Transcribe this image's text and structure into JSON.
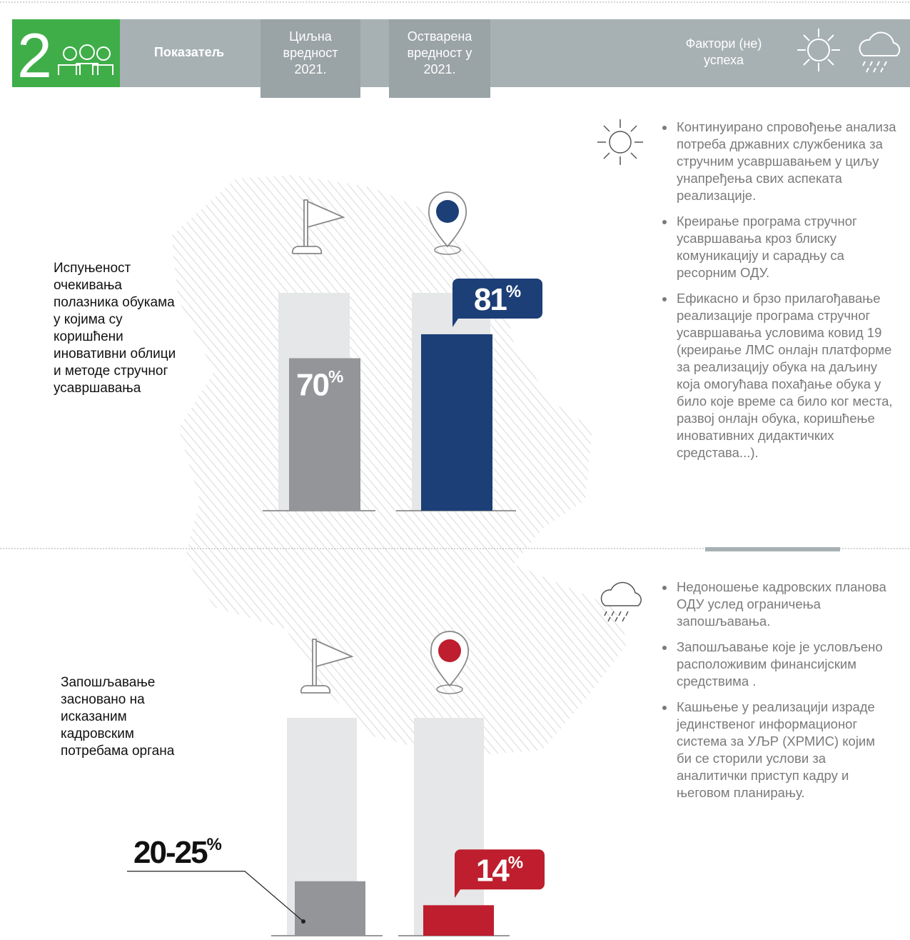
{
  "header": {
    "number": "2",
    "indicator": "Показатељ",
    "target": "Циљна вредност 2021.",
    "actual": "Остварена вредност у 2021.",
    "factors": "Фактори (не) успеха"
  },
  "chart_data": [
    {
      "type": "bar",
      "title": "Испуњеност очекивања полазника обукама у којима су коришћени иновативни облици и методе стручног усавршавања",
      "values": [
        70,
        81
      ],
      "value_labels": [
        "70%",
        "81%"
      ],
      "colors": [
        "#939598",
        "#1c3f77"
      ],
      "ylim": [
        0,
        100
      ]
    },
    {
      "type": "bar",
      "title": "Запошљавање засновано на исказаним кадровским потребама органа",
      "values": [
        {
          "low": 20,
          "high": 25
        },
        14
      ],
      "value_labels": [
        "20-25%",
        "14%"
      ],
      "colors": [
        "#939598",
        "#be1e2d"
      ],
      "ylim": [
        0,
        100
      ]
    }
  ],
  "success_factors": [
    "Континуирано спровођење анализа потреба државних службеника за стручним усавршавањем у циљу унапређења свих аспеката реализације.",
    "Креирање програма стручног усавршавања кроз блиску комуникацију и сарадњу са ресорним ОДУ.",
    "Ефикасно и брзо прилагођавање реализације програма стручног усавршавања условима ковид 19 (креирање ЛМС онлајн платформе за реализацију обука на даљину која омогућава похађање обука у било које време са било ког места, развој онлајн обука, коришћење иновативних дидактичких средстава...)."
  ],
  "failure_factors": [
    "Недоношење кадровских планова ОДУ услед ограничења запошљавања.",
    "Запошљавање које је условљено расположивим финансијским средствима .",
    "Кашњење у реализацији израде јединственог информационог система за УЉР (ХРМИС) којим би се сторили услови за аналитички приступ кадру и његовом планирању."
  ]
}
